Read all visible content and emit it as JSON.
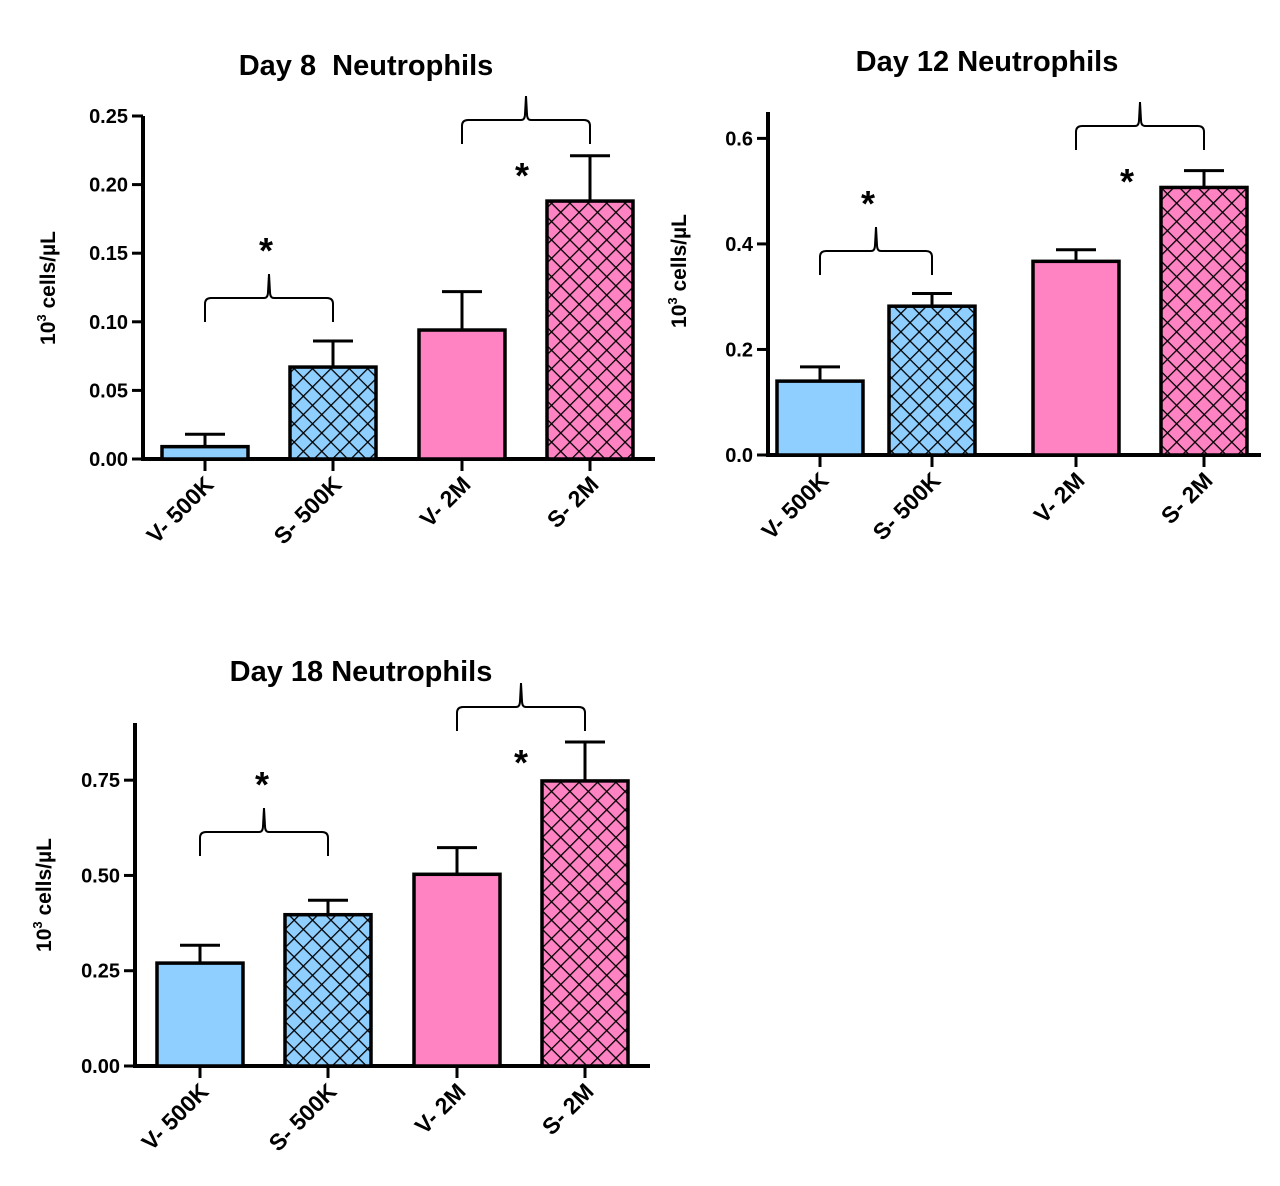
{
  "chart_data": [
    {
      "type": "bar",
      "title": "Day 8  Neutrophils",
      "ylabel_base": "10",
      "ylabel_sup": "3",
      "ylabel_rest": " cells/µL",
      "categories": [
        "V- 500K",
        "S- 500K",
        "V- 2M",
        "S- 2M"
      ],
      "values": [
        0.009,
        0.067,
        0.094,
        0.188
      ],
      "errors": [
        0.009,
        0.019,
        0.028,
        0.033
      ],
      "fills": [
        "#8fcfff",
        "#8fcfff",
        "#ff82c3",
        "#ff82c3"
      ],
      "hatched": [
        false,
        true,
        false,
        true
      ],
      "ylim": [
        0,
        0.25
      ],
      "yticks": [
        "0.00",
        "0.05",
        "0.10",
        "0.15",
        "0.20",
        "0.25"
      ],
      "significance": [
        {
          "from": 0,
          "to": 1,
          "label": "*",
          "star_above": true
        },
        {
          "from": 2,
          "to": 3,
          "label": "*",
          "star_above": false
        }
      ]
    },
    {
      "type": "bar",
      "title": "Day 12 Neutrophils",
      "ylabel_base": "10",
      "ylabel_sup": "3",
      "ylabel_rest": " cells/µL",
      "categories": [
        "V- 500K",
        "S- 500K",
        "V- 2M",
        "S- 2M"
      ],
      "values": [
        0.14,
        0.282,
        0.367,
        0.507
      ],
      "errors": [
        0.027,
        0.024,
        0.022,
        0.032
      ],
      "fills": [
        "#8fcfff",
        "#8fcfff",
        "#ff82c3",
        "#ff82c3"
      ],
      "hatched": [
        false,
        true,
        false,
        true
      ],
      "ylim": [
        0,
        0.65
      ],
      "yticks": [
        "0.0",
        "0.2",
        "0.4",
        "0.6"
      ],
      "significance": [
        {
          "from": 0,
          "to": 1,
          "label": "*",
          "star_above": true
        },
        {
          "from": 2,
          "to": 3,
          "label": "*",
          "star_above": false
        }
      ]
    },
    {
      "type": "bar",
      "title": "Day 18 Neutrophils",
      "ylabel_base": "10",
      "ylabel_sup": "3",
      "ylabel_rest": " cells/µL",
      "categories": [
        "V- 500K",
        "S- 500K",
        "V- 2M",
        "S- 2M"
      ],
      "values": [
        0.27,
        0.397,
        0.503,
        0.748
      ],
      "errors": [
        0.047,
        0.038,
        0.07,
        0.102
      ],
      "fills": [
        "#8fcfff",
        "#8fcfff",
        "#ff82c3",
        "#ff82c3"
      ],
      "hatched": [
        false,
        true,
        false,
        true
      ],
      "ylim": [
        0,
        0.9
      ],
      "yticks": [
        "0.00",
        "0.25",
        "0.50",
        "0.75"
      ],
      "significance": [
        {
          "from": 0,
          "to": 1,
          "label": "*",
          "star_above": true
        },
        {
          "from": 2,
          "to": 3,
          "label": "*",
          "star_above": false
        }
      ]
    }
  ]
}
